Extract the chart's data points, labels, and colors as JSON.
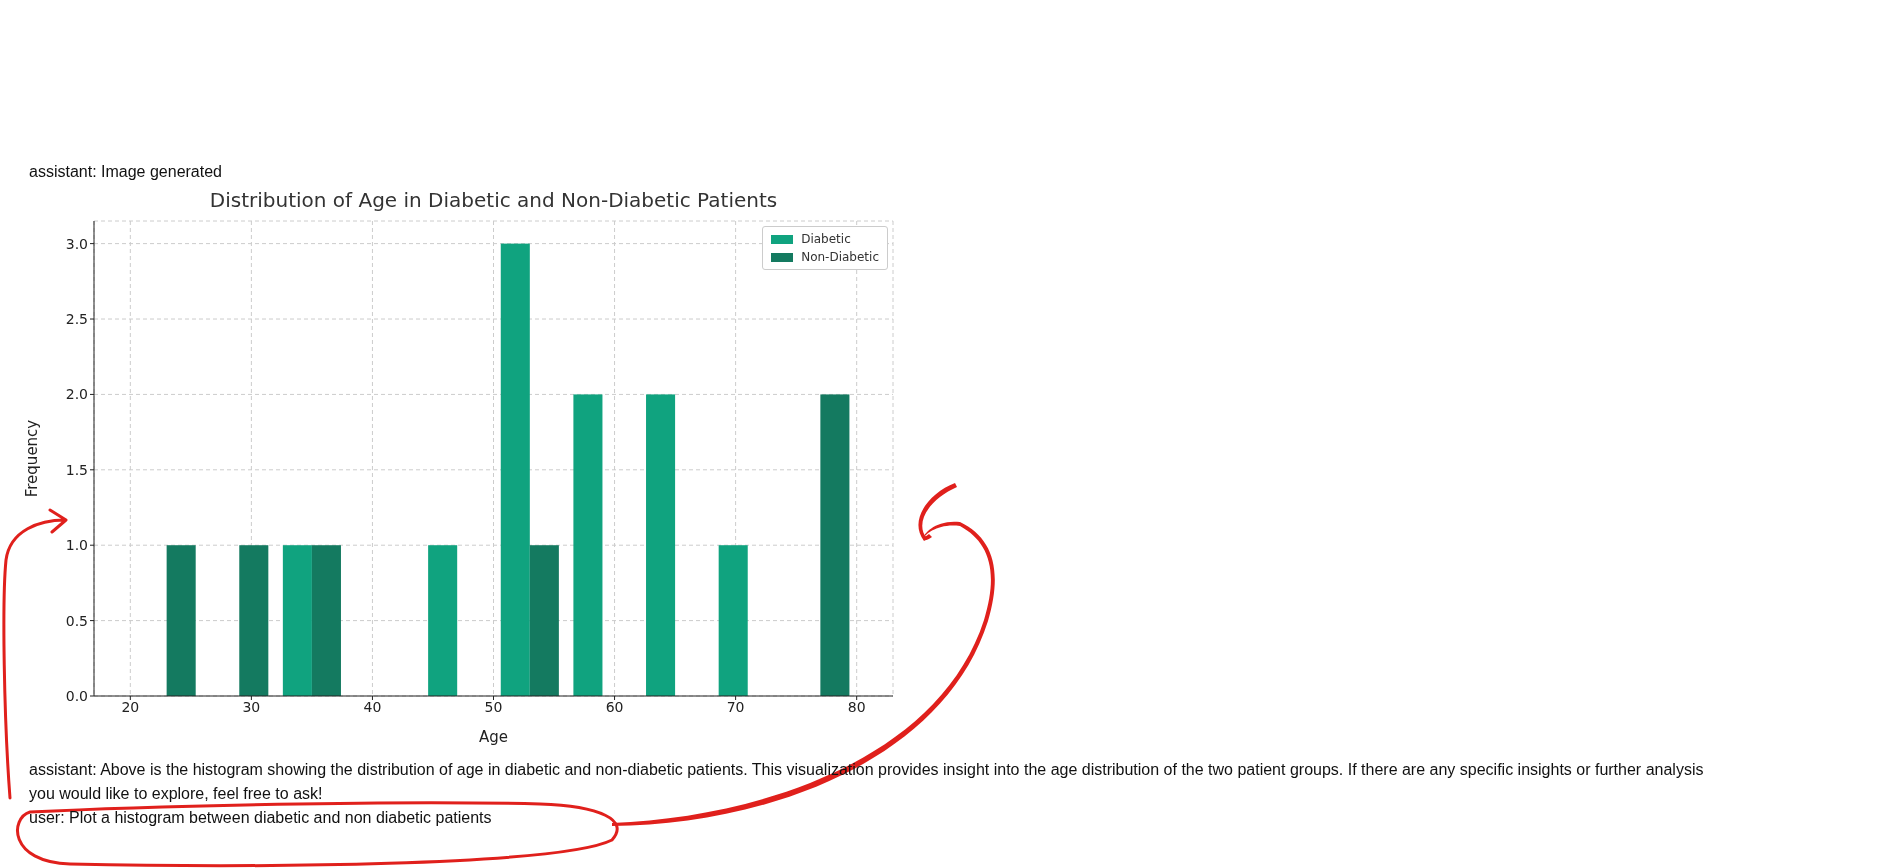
{
  "chart_data": {
    "type": "histogram",
    "title": "Distribution of Age in Diabetic and Non-Diabetic Patients",
    "xlabel": "Age",
    "ylabel": "Frequency",
    "bins": [
      20,
      26,
      32,
      38,
      44,
      50,
      56,
      62,
      68,
      74,
      80
    ],
    "series": [
      {
        "name": "Diabetic",
        "color": "#10a37f",
        "values": [
          0,
          0,
          1,
          0,
          1,
          3,
          2,
          2,
          1,
          0
        ]
      },
      {
        "name": "Non-Diabetic",
        "color": "#147a60",
        "values": [
          1,
          1,
          1,
          0,
          0,
          1,
          0,
          0,
          0,
          2
        ]
      }
    ],
    "xlim": [
      17,
      83
    ],
    "xticks": [
      20,
      30,
      40,
      50,
      60,
      70,
      80
    ],
    "ylim": [
      0,
      3.15
    ],
    "yticks": [
      {
        "value": 0,
        "label": "0.0"
      },
      {
        "value": 0.5,
        "label": "0.5"
      },
      {
        "value": 1,
        "label": "1.0"
      },
      {
        "value": 1.5,
        "label": "1.5"
      },
      {
        "value": 2,
        "label": "2.0"
      },
      {
        "value": 2.5,
        "label": "2.5"
      },
      {
        "value": 3,
        "label": "3.0"
      }
    ],
    "grid": true,
    "legend": "top right",
    "annotations": [
      "assistant: Image generated",
      "assistant: Above is the histogram showing the distribution of age in diabetic and non-diabetic patients. This visualization provides insight into the age distribution of the two patient groups. If there are any specific insights or further analysis you would like to explore, feel free to ask!",
      "user: Plot a histogram between diabetic and non diabetic patients"
    ]
  }
}
